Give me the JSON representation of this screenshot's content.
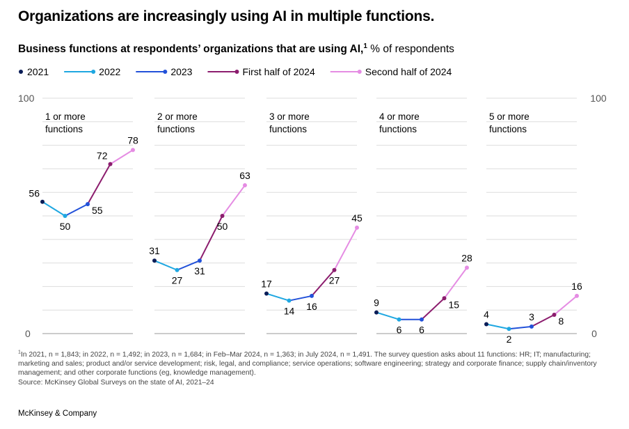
{
  "headline": "Organizations are increasingly using AI in multiple functions.",
  "subtitle": {
    "bold": "Business functions at respondents’ organizations that are using AI,",
    "footnote_mark": "1",
    "unit": "% of respondents"
  },
  "footnote": {
    "mark": "1",
    "text": "In 2021, n = 1,843; in 2022, n = 1,492; in 2023, n = 1,684; in Feb–Mar 2024, n = 1,363; in July 2024, n = 1,491. The survey question asks about 11 functions: HR; IT; manufacturing; marketing and sales; product and/or service development; risk, legal, and compliance; service operations; software engineering; strategy and corporate finance; supply chain/inventory management; and other corporate functions (eg, knowledge management)."
  },
  "source": "Source: McKinsey Global Surveys on the state of AI, 2021–24",
  "brand": "McKinsey & Company",
  "chart_data": {
    "type": "line",
    "title": "Business functions at respondents’ organizations that are using AI",
    "unit": "% of respondents",
    "ylim": [
      0,
      100
    ],
    "y_axis_labels": [
      "0",
      "100"
    ],
    "grid": true,
    "legend_placement": "top-left",
    "x": [
      "2021",
      "2022",
      "2023",
      "First half of 2024",
      "Second half of 2024"
    ],
    "series": [
      {
        "name": "2021",
        "color": "#0b1d57"
      },
      {
        "name": "2022",
        "color": "#1ea7e1"
      },
      {
        "name": "2023",
        "color": "#2251d9"
      },
      {
        "name": "First half of 2024",
        "color": "#8c1d6e"
      },
      {
        "name": "Second half of 2024",
        "color": "#e58ce3"
      }
    ],
    "panels": [
      {
        "label": [
          "1 or more",
          "functions"
        ],
        "values": [
          56,
          50,
          55,
          72,
          78
        ]
      },
      {
        "label": [
          "2 or more",
          "functions"
        ],
        "values": [
          31,
          27,
          31,
          50,
          63
        ]
      },
      {
        "label": [
          "3 or more",
          "functions"
        ],
        "values": [
          17,
          14,
          16,
          27,
          45
        ]
      },
      {
        "label": [
          "4 or more",
          "functions"
        ],
        "values": [
          9,
          6,
          6,
          15,
          28
        ]
      },
      {
        "label": [
          "5 or more",
          "functions"
        ],
        "values": [
          4,
          2,
          3,
          8,
          16
        ]
      }
    ]
  }
}
